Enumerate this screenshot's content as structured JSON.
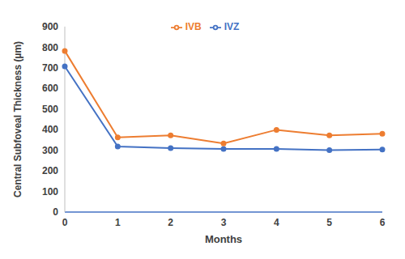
{
  "chart_data": {
    "type": "line",
    "x_label": "Months",
    "y_label": "Central Subfoveal Thickness (µm)",
    "categories": [
      "0",
      "1",
      "2",
      "3",
      "4",
      "5",
      "6"
    ],
    "series": [
      {
        "name": "IVZ",
        "color": "#4472c4",
        "values": [
          707,
          318,
          310,
          306,
          306,
          300,
          303
        ],
        "marker": "circle"
      },
      {
        "name": "IVB",
        "color": "#ed7d31",
        "values": [
          782,
          362,
          372,
          333,
          399,
          372,
          380
        ],
        "marker": "circle"
      }
    ],
    "ylim": [
      0,
      900
    ],
    "yticks": [
      0,
      100,
      200,
      300,
      400,
      500,
      600,
      700,
      800,
      900
    ],
    "grid": false,
    "legend": "top"
  }
}
